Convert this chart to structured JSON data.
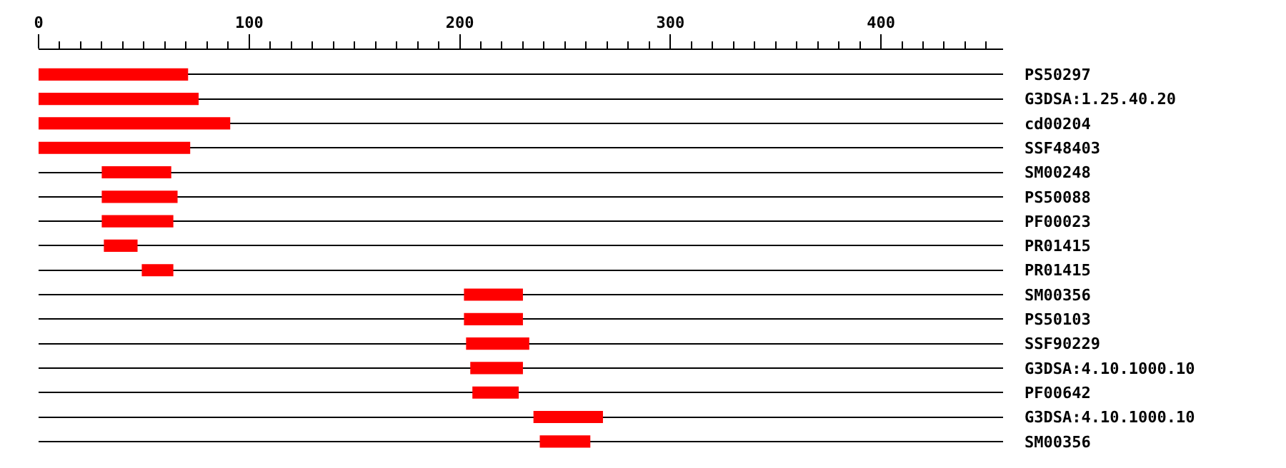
{
  "chart_data": {
    "type": "bar",
    "orientation": "horizontal",
    "categories": [
      "PS50297",
      "G3DSA:1.25.40.20",
      "cd00204",
      "SSF48403",
      "SM00248",
      "PS50088",
      "PF00023",
      "PR01415",
      "PR01415",
      "SM00356",
      "PS50103",
      "SSF90229",
      "G3DSA:4.10.1000.10",
      "PF00642",
      "G3DSA:4.10.1000.10",
      "SM00356"
    ],
    "base": [
      0,
      0,
      0,
      0,
      30,
      30,
      30,
      31,
      49,
      202,
      202,
      203,
      205,
      206,
      235,
      238
    ],
    "values": [
      71,
      76,
      91,
      72,
      33,
      36,
      34,
      16,
      15,
      28,
      28,
      30,
      25,
      22,
      33,
      24
    ],
    "color": "#ff0000",
    "xlim": [
      0,
      458
    ],
    "xticks": [
      0,
      {
        "value": 10,
        "label": null
      },
      {
        "value": 20,
        "label": null
      },
      {
        "value": 30,
        "label": null
      },
      {
        "value": 40,
        "label": null
      },
      {
        "value": 50,
        "label": null
      },
      {
        "value": 60,
        "label": null
      },
      {
        "value": 70,
        "label": null
      },
      {
        "value": 80,
        "label": null
      },
      {
        "value": 90,
        "label": null
      },
      100,
      {
        "value": 110,
        "label": null
      },
      {
        "value": 120,
        "label": null
      },
      {
        "value": 130,
        "label": null
      },
      {
        "value": 140,
        "label": null
      },
      {
        "value": 150,
        "label": null
      },
      {
        "value": 160,
        "label": null
      },
      {
        "value": 170,
        "label": null
      },
      {
        "value": 180,
        "label": null
      },
      {
        "value": 190,
        "label": null
      },
      200,
      {
        "value": 210,
        "label": null
      },
      {
        "value": 220,
        "label": null
      },
      {
        "value": 230,
        "label": null
      },
      {
        "value": 240,
        "label": null
      },
      {
        "value": 250,
        "label": null
      },
      {
        "value": 260,
        "label": null
      },
      {
        "value": 270,
        "label": null
      },
      {
        "value": 280,
        "label": null
      },
      {
        "value": 290,
        "label": null
      },
      300,
      {
        "value": 310,
        "label": null
      },
      {
        "value": 320,
        "label": null
      },
      {
        "value": 330,
        "label": null
      },
      {
        "value": 340,
        "label": null
      },
      {
        "value": 350,
        "label": null
      },
      {
        "value": 360,
        "label": null
      },
      {
        "value": 370,
        "label": null
      },
      {
        "value": 380,
        "label": null
      },
      {
        "value": 390,
        "label": null
      },
      400,
      {
        "value": 410,
        "label": null
      },
      {
        "value": 420,
        "label": null
      },
      {
        "value": 430,
        "label": null
      },
      {
        "value": 440,
        "label": null
      },
      {
        "value": 450,
        "label": null
      }
    ],
    "grid": "y",
    "legend": false
  }
}
